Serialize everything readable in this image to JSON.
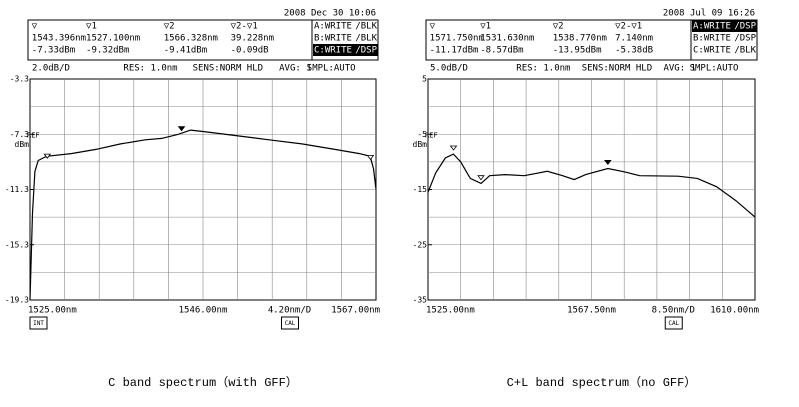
{
  "chart_data": [
    {
      "type": "line",
      "caption": "C band spectrum（with GFF）",
      "date": "2008 Dec 30 10:06",
      "marker_header": [
        [
          "▽",
          "▽1",
          "▽2",
          "▽2-▽1"
        ],
        [
          "1543.396nm",
          "1527.100nm",
          "1566.328nm",
          "39.228nm"
        ],
        [
          "-7.33dBm",
          "-9.32dBm",
          "-9.41dBm",
          "-0.09dB"
        ]
      ],
      "traces": [
        "A:WRITE",
        "B:WRITE",
        "C:WRITE"
      ],
      "trace_modes": [
        "/BLK",
        "/BLK",
        "/DSP"
      ],
      "active_trace": 2,
      "status": [
        "2.0dB/D",
        "RES: 1.0nm",
        "SENS:NORM HLD",
        "AVG:  1",
        "SMPL:AUTO"
      ],
      "ref_label": "REF",
      "y_unit": "dBm",
      "x_scale_label": "4.20nm/D",
      "icons": [
        "INT",
        "CAL"
      ],
      "x": [
        1525,
        1525.3,
        1525.6,
        1526,
        1527,
        1530,
        1533,
        1536,
        1539,
        1541,
        1543,
        1544.5,
        1546,
        1550,
        1554,
        1558,
        1562,
        1565,
        1566.3,
        1566.7,
        1567
      ],
      "values": [
        -19.3,
        -13,
        -10,
        -9.2,
        -8.9,
        -8.7,
        -8.4,
        -8.0,
        -7.7,
        -7.6,
        -7.3,
        -7.0,
        -7.1,
        -7.4,
        -7.7,
        -8.0,
        -8.4,
        -8.7,
        -8.9,
        -9.8,
        -11.3
      ],
      "color": "#000000",
      "markers": [
        {
          "x": 1543.396,
          "y": -7.33
        },
        {
          "x": 1527.1,
          "y": -9.32
        },
        {
          "x": 1566.328,
          "y": -9.41
        }
      ],
      "xlim": [
        1525,
        1567
      ],
      "ylim": [
        -19.3,
        -3.3
      ],
      "xticks": [
        {
          "value": 1525,
          "label": "1525.00nm"
        },
        {
          "value": 1546,
          "label": "1546.00nm"
        },
        {
          "value": 1567,
          "label": "1567.00nm"
        }
      ],
      "yticks": [
        -3.3,
        -7.3,
        -11.3,
        -15.3,
        -19.3
      ],
      "xgrid": [
        1529.2,
        1533.4,
        1537.6,
        1541.8,
        1546,
        1550.2,
        1554.4,
        1558.6,
        1562.8
      ],
      "ygrid": [
        -5.3,
        -7.3,
        -9.3,
        -11.3,
        -13.3,
        -15.3,
        -17.3
      ],
      "ref": -7.3,
      "grid": true
    },
    {
      "type": "line",
      "caption": "C+L band spectrum（no GFF）",
      "date": "2008 Jul 09 16:26",
      "marker_header": [
        [
          "▽",
          "▽1",
          "▽2",
          "▽2-▽1"
        ],
        [
          "1571.750nm",
          "1531.630nm",
          "1538.770nm",
          "7.140nm"
        ],
        [
          "-11.17dBm",
          "-8.57dBm",
          "-13.95dBm",
          "-5.38dB"
        ]
      ],
      "traces": [
        "A:WRITE",
        "B:WRITE",
        "C:WRITE"
      ],
      "trace_modes": [
        "/DSP",
        "/DSP",
        "/BLK"
      ],
      "active_trace": 0,
      "status": [
        "5.0dB/D",
        "RES: 1.0nm",
        "SENS:NORM HLD",
        "AVG:  1",
        "SMPL:AUTO"
      ],
      "ref_label": "REF",
      "y_unit": "dBm",
      "x_scale_label": "8.50nm/D",
      "icons": [
        "CAL"
      ],
      "x": [
        1525,
        1527,
        1529.5,
        1531.6,
        1533.5,
        1536,
        1538.8,
        1541,
        1545,
        1550,
        1556,
        1560,
        1563,
        1566,
        1571.75,
        1576,
        1580,
        1590,
        1595,
        1600,
        1605,
        1610
      ],
      "values": [
        -15.5,
        -12,
        -9.3,
        -8.6,
        -10,
        -13,
        -13.9,
        -12.5,
        -12.3,
        -12.5,
        -11.7,
        -12.5,
        -13.2,
        -12.3,
        -11.2,
        -11.8,
        -12.5,
        -12.6,
        -13,
        -14.5,
        -17,
        -20
      ],
      "color": "#000000",
      "markers": [
        {
          "x": 1571.75,
          "y": -11.17
        },
        {
          "x": 1531.63,
          "y": -8.57
        },
        {
          "x": 1538.77,
          "y": -13.95
        }
      ],
      "xlim": [
        1525,
        1610
      ],
      "ylim": [
        -35,
        5
      ],
      "xticks": [
        {
          "value": 1525,
          "label": "1525.00nm"
        },
        {
          "value": 1567.5,
          "label": "1567.50nm"
        },
        {
          "value": 1610,
          "label": "1610.00nm"
        }
      ],
      "yticks": [
        5,
        -5,
        -15,
        -25,
        -35
      ],
      "xgrid": [
        1533.5,
        1542,
        1550.5,
        1559,
        1567.5,
        1576,
        1584.5,
        1593,
        1601.5
      ],
      "ygrid": [
        0,
        -5,
        -10,
        -15,
        -20,
        -25,
        -30
      ],
      "ref": -5,
      "grid": true
    }
  ]
}
